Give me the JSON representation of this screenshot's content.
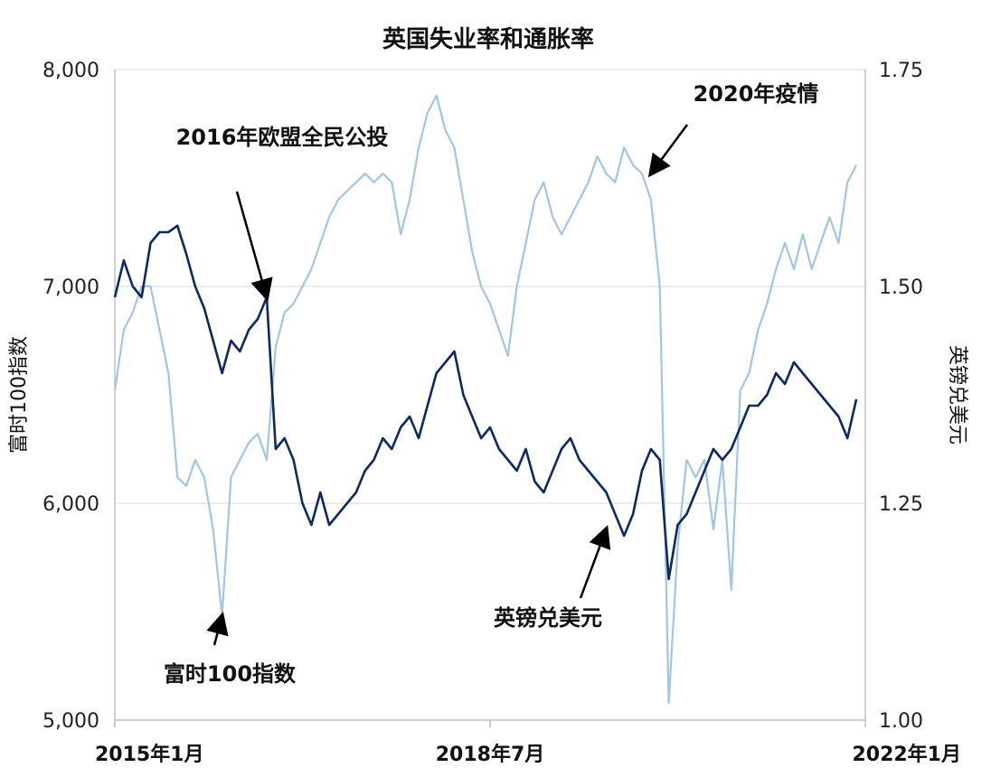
{
  "chart_data": {
    "type": "line",
    "title": "英国失业率和通胀率",
    "y_left_label": "富时100指数",
    "y_right_label": "英镑兑美元",
    "y_left_lim": [
      5000,
      8000
    ],
    "y_right_lim": [
      1.0,
      1.75
    ],
    "y_left_ticks": [
      "8,000",
      "7,000",
      "6,000",
      "5,000"
    ],
    "y_right_ticks": [
      "1.75",
      "1.50",
      "1.25",
      "1.00"
    ],
    "x_ticks": [
      "2015年1月",
      "2018年7月",
      "2022年1月"
    ],
    "grid": true,
    "series": [
      {
        "name": "富时100指数",
        "axis": "left",
        "color": "#0b2a63",
        "points": [
          [
            "2015-01",
            6950
          ],
          [
            "2015-02",
            7120
          ],
          [
            "2015-03",
            7000
          ],
          [
            "2015-04",
            6950
          ],
          [
            "2015-05",
            7200
          ],
          [
            "2015-06",
            7250
          ],
          [
            "2015-07",
            7250
          ],
          [
            "2015-08",
            7280
          ],
          [
            "2015-09",
            7150
          ],
          [
            "2015-10",
            7000
          ],
          [
            "2015-11",
            6900
          ],
          [
            "2015-12",
            6750
          ],
          [
            "2016-01",
            6600
          ],
          [
            "2016-02",
            6750
          ],
          [
            "2016-03",
            6700
          ],
          [
            "2016-04",
            6800
          ],
          [
            "2016-05",
            6850
          ],
          [
            "2016-06",
            6950
          ],
          [
            "2016-07",
            6250
          ],
          [
            "2016-08",
            6300
          ],
          [
            "2016-09",
            6200
          ],
          [
            "2016-10",
            6000
          ],
          [
            "2016-11",
            5900
          ],
          [
            "2016-12",
            6050
          ],
          [
            "2017-01",
            5900
          ],
          [
            "2017-02",
            5950
          ],
          [
            "2017-03",
            6000
          ],
          [
            "2017-04",
            6050
          ],
          [
            "2017-05",
            6150
          ],
          [
            "2017-06",
            6200
          ],
          [
            "2017-07",
            6300
          ],
          [
            "2017-08",
            6250
          ],
          [
            "2017-09",
            6350
          ],
          [
            "2017-10",
            6400
          ],
          [
            "2017-11",
            6300
          ],
          [
            "2017-12",
            6450
          ],
          [
            "2018-01",
            6600
          ],
          [
            "2018-02",
            6650
          ],
          [
            "2018-03",
            6700
          ],
          [
            "2018-04",
            6500
          ],
          [
            "2018-05",
            6400
          ],
          [
            "2018-06",
            6300
          ],
          [
            "2018-07",
            6350
          ],
          [
            "2018-08",
            6250
          ],
          [
            "2018-09",
            6200
          ],
          [
            "2018-10",
            6150
          ],
          [
            "2018-11",
            6250
          ],
          [
            "2018-12",
            6100
          ],
          [
            "2019-01",
            6050
          ],
          [
            "2019-02",
            6150
          ],
          [
            "2019-03",
            6250
          ],
          [
            "2019-04",
            6300
          ],
          [
            "2019-05",
            6200
          ],
          [
            "2019-06",
            6150
          ],
          [
            "2019-07",
            6100
          ],
          [
            "2019-08",
            6050
          ],
          [
            "2019-09",
            5950
          ],
          [
            "2019-10",
            5850
          ],
          [
            "2019-11",
            5950
          ],
          [
            "2019-12",
            6150
          ],
          [
            "2020-01",
            6250
          ],
          [
            "2020-02",
            6200
          ],
          [
            "2020-03",
            5650
          ],
          [
            "2020-04",
            5900
          ],
          [
            "2020-05",
            5950
          ],
          [
            "2020-06",
            6050
          ],
          [
            "2020-07",
            6150
          ],
          [
            "2020-08",
            6250
          ],
          [
            "2020-09",
            6200
          ],
          [
            "2020-10",
            6250
          ],
          [
            "2020-11",
            6350
          ],
          [
            "2020-12",
            6450
          ],
          [
            "2021-01",
            6450
          ],
          [
            "2021-02",
            6500
          ],
          [
            "2021-03",
            6600
          ],
          [
            "2021-04",
            6550
          ],
          [
            "2021-05",
            6650
          ],
          [
            "2021-06",
            6600
          ],
          [
            "2021-07",
            6550
          ],
          [
            "2021-08",
            6500
          ],
          [
            "2021-09",
            6450
          ],
          [
            "2021-10",
            6400
          ],
          [
            "2021-11",
            6300
          ],
          [
            "2021-12",
            6480
          ]
        ]
      },
      {
        "name": "英镑兑美元",
        "axis": "right",
        "color": "#9fc5e8",
        "points": [
          [
            "2015-01",
            1.38
          ],
          [
            "2015-02",
            1.45
          ],
          [
            "2015-03",
            1.47
          ],
          [
            "2015-04",
            1.5
          ],
          [
            "2015-05",
            1.5
          ],
          [
            "2015-06",
            1.45
          ],
          [
            "2015-07",
            1.4
          ],
          [
            "2015-08",
            1.28
          ],
          [
            "2015-09",
            1.27
          ],
          [
            "2015-10",
            1.3
          ],
          [
            "2015-11",
            1.28
          ],
          [
            "2015-12",
            1.22
          ],
          [
            "2016-01",
            1.12
          ],
          [
            "2016-02",
            1.28
          ],
          [
            "2016-03",
            1.3
          ],
          [
            "2016-04",
            1.32
          ],
          [
            "2016-05",
            1.33
          ],
          [
            "2016-06",
            1.3
          ],
          [
            "2016-07",
            1.43
          ],
          [
            "2016-08",
            1.47
          ],
          [
            "2016-09",
            1.48
          ],
          [
            "2016-10",
            1.5
          ],
          [
            "2016-11",
            1.52
          ],
          [
            "2016-12",
            1.55
          ],
          [
            "2017-01",
            1.58
          ],
          [
            "2017-02",
            1.6
          ],
          [
            "2017-03",
            1.61
          ],
          [
            "2017-04",
            1.62
          ],
          [
            "2017-05",
            1.63
          ],
          [
            "2017-06",
            1.62
          ],
          [
            "2017-07",
            1.63
          ],
          [
            "2017-08",
            1.62
          ],
          [
            "2017-09",
            1.56
          ],
          [
            "2017-10",
            1.6
          ],
          [
            "2017-11",
            1.66
          ],
          [
            "2017-12",
            1.7
          ],
          [
            "2018-01",
            1.72
          ],
          [
            "2018-02",
            1.68
          ],
          [
            "2018-03",
            1.66
          ],
          [
            "2018-04",
            1.6
          ],
          [
            "2018-05",
            1.54
          ],
          [
            "2018-06",
            1.5
          ],
          [
            "2018-07",
            1.48
          ],
          [
            "2018-08",
            1.45
          ],
          [
            "2018-09",
            1.42
          ],
          [
            "2018-10",
            1.5
          ],
          [
            "2018-11",
            1.55
          ],
          [
            "2018-12",
            1.6
          ],
          [
            "2019-01",
            1.62
          ],
          [
            "2019-02",
            1.58
          ],
          [
            "2019-03",
            1.56
          ],
          [
            "2019-04",
            1.58
          ],
          [
            "2019-05",
            1.6
          ],
          [
            "2019-06",
            1.62
          ],
          [
            "2019-07",
            1.65
          ],
          [
            "2019-08",
            1.63
          ],
          [
            "2019-09",
            1.62
          ],
          [
            "2019-10",
            1.66
          ],
          [
            "2019-11",
            1.64
          ],
          [
            "2019-12",
            1.63
          ],
          [
            "2020-01",
            1.6
          ],
          [
            "2020-02",
            1.5
          ],
          [
            "2020-03",
            1.02
          ],
          [
            "2020-04",
            1.2
          ],
          [
            "2020-05",
            1.3
          ],
          [
            "2020-06",
            1.28
          ],
          [
            "2020-07",
            1.3
          ],
          [
            "2020-08",
            1.22
          ],
          [
            "2020-09",
            1.3
          ],
          [
            "2020-10",
            1.15
          ],
          [
            "2020-11",
            1.38
          ],
          [
            "2020-12",
            1.4
          ],
          [
            "2021-01",
            1.45
          ],
          [
            "2021-02",
            1.48
          ],
          [
            "2021-03",
            1.52
          ],
          [
            "2021-04",
            1.55
          ],
          [
            "2021-05",
            1.52
          ],
          [
            "2021-06",
            1.56
          ],
          [
            "2021-07",
            1.52
          ],
          [
            "2021-08",
            1.55
          ],
          [
            "2021-09",
            1.58
          ],
          [
            "2021-10",
            1.55
          ],
          [
            "2021-11",
            1.62
          ],
          [
            "2021-12",
            1.64
          ]
        ]
      }
    ],
    "annotations": [
      {
        "text": "2016年欧盟全民公投",
        "target": [
          "2016-06",
          6950
        ],
        "axis": "left"
      },
      {
        "text": "2020年疫情",
        "target": [
          "2020-01",
          1.63
        ],
        "axis": "right"
      },
      {
        "text": "英镑兑美元",
        "target": [
          "2019-08",
          1.22
        ],
        "axis": "right"
      },
      {
        "text": "富时100指数",
        "target": [
          "2016-01",
          1.12
        ],
        "axis": "right"
      }
    ]
  }
}
